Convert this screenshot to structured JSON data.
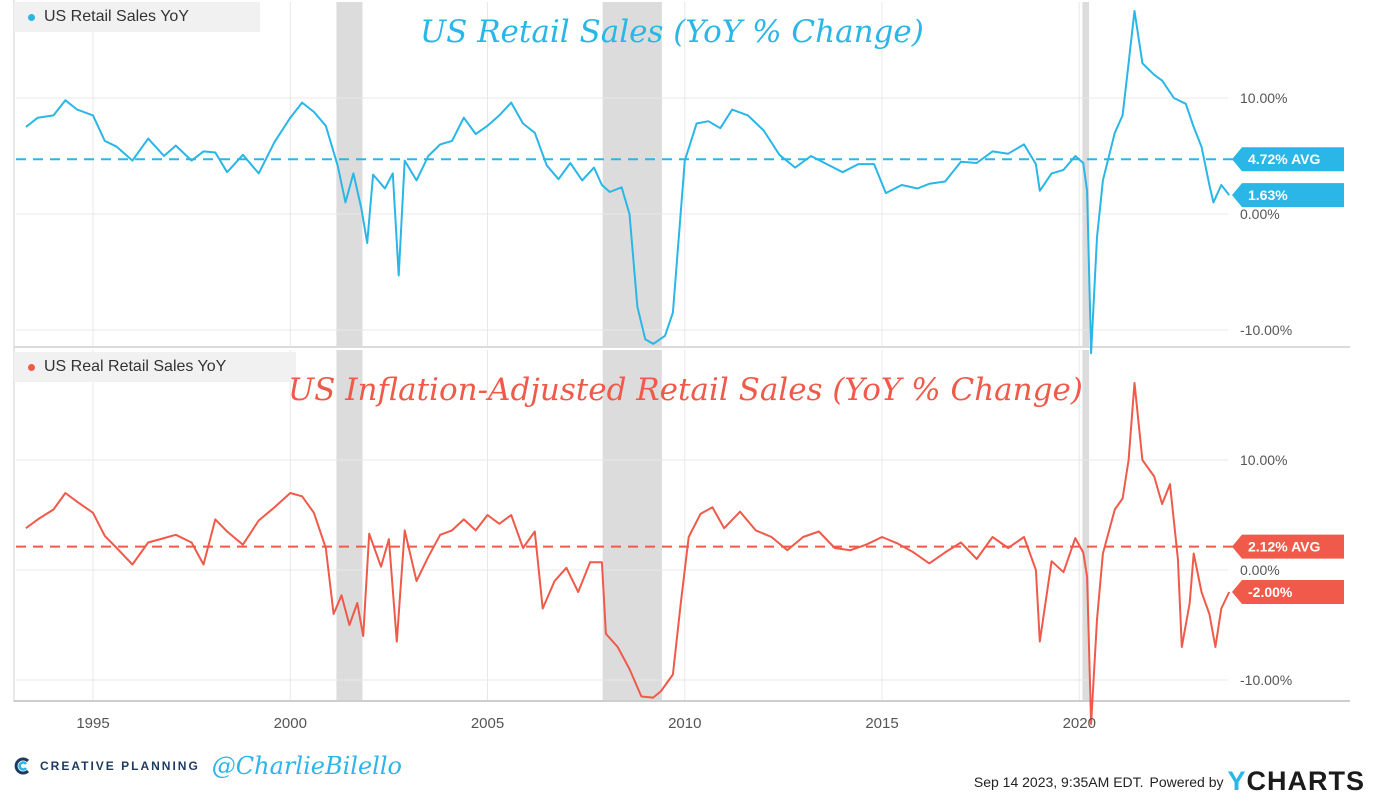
{
  "chart_data": [
    {
      "type": "line",
      "id": "nominal",
      "legend_label": "US Retail Sales YoY",
      "overlay_title": "US Retail Sales (YoY % Change)",
      "color": "#2ab6e6",
      "x_range": [
        1993.3,
        2023.8
      ],
      "ylim": [
        -12,
        20
      ],
      "x_ticks": [
        "1995",
        "2000",
        "2005",
        "2010",
        "2015",
        "2020"
      ],
      "y_ticks": [
        "10.00%",
        "0.00%",
        "-10.00%"
      ],
      "y_tick_values": [
        10,
        0,
        -10
      ],
      "average": 4.72,
      "average_label": "4.72% AVG",
      "last_value": 1.63,
      "last_value_label": "1.63%",
      "recessions": [
        [
          2001.17,
          2001.83
        ],
        [
          2007.92,
          2009.42
        ],
        [
          2020.08,
          2020.25
        ]
      ],
      "series": [
        {
          "name": "US Retail Sales YoY",
          "points": [
            [
              1993.3,
              7.5
            ],
            [
              1993.6,
              8.3
            ],
            [
              1994.0,
              8.5
            ],
            [
              1994.3,
              9.8
            ],
            [
              1994.6,
              9.0
            ],
            [
              1995.0,
              8.5
            ],
            [
              1995.3,
              6.3
            ],
            [
              1995.6,
              5.8
            ],
            [
              1996.0,
              4.6
            ],
            [
              1996.4,
              6.5
            ],
            [
              1996.8,
              5.0
            ],
            [
              1997.1,
              5.9
            ],
            [
              1997.5,
              4.6
            ],
            [
              1997.8,
              5.4
            ],
            [
              1998.1,
              5.3
            ],
            [
              1998.4,
              3.6
            ],
            [
              1998.8,
              5.1
            ],
            [
              1999.2,
              3.5
            ],
            [
              1999.6,
              6.2
            ],
            [
              2000.0,
              8.3
            ],
            [
              2000.3,
              9.6
            ],
            [
              2000.6,
              8.8
            ],
            [
              2000.9,
              7.6
            ],
            [
              2001.2,
              4.2
            ],
            [
              2001.4,
              1.0
            ],
            [
              2001.6,
              3.5
            ],
            [
              2001.8,
              0.5
            ],
            [
              2001.95,
              -2.5
            ],
            [
              2002.1,
              3.4
            ],
            [
              2002.4,
              2.2
            ],
            [
              2002.6,
              3.5
            ],
            [
              2002.75,
              -5.3
            ],
            [
              2002.9,
              4.6
            ],
            [
              2003.2,
              2.9
            ],
            [
              2003.5,
              5.0
            ],
            [
              2003.8,
              6.0
            ],
            [
              2004.1,
              6.3
            ],
            [
              2004.4,
              8.3
            ],
            [
              2004.7,
              6.9
            ],
            [
              2005.0,
              7.6
            ],
            [
              2005.3,
              8.5
            ],
            [
              2005.6,
              9.6
            ],
            [
              2005.9,
              7.8
            ],
            [
              2006.2,
              7.0
            ],
            [
              2006.5,
              4.2
            ],
            [
              2006.8,
              3.0
            ],
            [
              2007.1,
              4.4
            ],
            [
              2007.4,
              2.9
            ],
            [
              2007.7,
              4.0
            ],
            [
              2007.9,
              2.5
            ],
            [
              2008.1,
              1.9
            ],
            [
              2008.4,
              2.3
            ],
            [
              2008.6,
              0.0
            ],
            [
              2008.8,
              -8.0
            ],
            [
              2009.0,
              -10.8
            ],
            [
              2009.2,
              -11.2
            ],
            [
              2009.5,
              -10.5
            ],
            [
              2009.7,
              -8.5
            ],
            [
              2009.85,
              -2.0
            ],
            [
              2010.0,
              4.6
            ],
            [
              2010.3,
              7.8
            ],
            [
              2010.6,
              8.0
            ],
            [
              2010.9,
              7.4
            ],
            [
              2011.2,
              9.0
            ],
            [
              2011.6,
              8.5
            ],
            [
              2012.0,
              7.2
            ],
            [
              2012.4,
              5.1
            ],
            [
              2012.8,
              4.0
            ],
            [
              2013.2,
              5.0
            ],
            [
              2013.6,
              4.3
            ],
            [
              2014.0,
              3.6
            ],
            [
              2014.4,
              4.3
            ],
            [
              2014.8,
              4.3
            ],
            [
              2015.1,
              1.8
            ],
            [
              2015.5,
              2.5
            ],
            [
              2015.9,
              2.2
            ],
            [
              2016.2,
              2.6
            ],
            [
              2016.6,
              2.8
            ],
            [
              2017.0,
              4.5
            ],
            [
              2017.4,
              4.4
            ],
            [
              2017.8,
              5.4
            ],
            [
              2018.2,
              5.2
            ],
            [
              2018.6,
              6.0
            ],
            [
              2018.9,
              4.3
            ],
            [
              2019.0,
              2.0
            ],
            [
              2019.3,
              3.5
            ],
            [
              2019.6,
              3.8
            ],
            [
              2019.9,
              5.0
            ],
            [
              2020.1,
              4.4
            ],
            [
              2020.2,
              2.0
            ],
            [
              2020.3,
              -12.0
            ],
            [
              2020.45,
              -2.0
            ],
            [
              2020.6,
              2.9
            ],
            [
              2020.9,
              7.0
            ],
            [
              2021.1,
              8.5
            ],
            [
              2021.25,
              13.0
            ],
            [
              2021.4,
              17.5
            ],
            [
              2021.6,
              13.0
            ],
            [
              2021.9,
              12.0
            ],
            [
              2022.1,
              11.5
            ],
            [
              2022.4,
              10.0
            ],
            [
              2022.7,
              9.5
            ],
            [
              2022.9,
              7.5
            ],
            [
              2023.1,
              5.8
            ],
            [
              2023.3,
              2.5
            ],
            [
              2023.4,
              1.0
            ],
            [
              2023.6,
              2.5
            ],
            [
              2023.8,
              1.63
            ]
          ]
        }
      ]
    },
    {
      "type": "line",
      "id": "real",
      "legend_label": "US Real Retail Sales YoY",
      "overlay_title": "US Inflation-Adjusted Retail Sales (YoY % Change)",
      "color": "#ef5a4a",
      "x_range": [
        1993.3,
        2023.8
      ],
      "ylim": [
        -12,
        20
      ],
      "x_ticks": [
        "1995",
        "2000",
        "2005",
        "2010",
        "2015",
        "2020"
      ],
      "y_ticks": [
        "10.00%",
        "0.00%",
        "-10.00%"
      ],
      "y_tick_values": [
        10,
        0,
        -10
      ],
      "average": 2.12,
      "average_label": "2.12% AVG",
      "last_value": -2.0,
      "last_value_label": "-2.00%",
      "recessions": [
        [
          2001.17,
          2001.83
        ],
        [
          2007.92,
          2009.42
        ],
        [
          2020.08,
          2020.25
        ]
      ],
      "series": [
        {
          "name": "US Real Retail Sales YoY",
          "points": [
            [
              1993.3,
              3.8
            ],
            [
              1993.6,
              4.6
            ],
            [
              1994.0,
              5.5
            ],
            [
              1994.3,
              7.0
            ],
            [
              1994.6,
              6.2
            ],
            [
              1995.0,
              5.2
            ],
            [
              1995.3,
              3.1
            ],
            [
              1995.6,
              2.0
            ],
            [
              1996.0,
              0.5
            ],
            [
              1996.4,
              2.5
            ],
            [
              1996.8,
              2.9
            ],
            [
              1997.1,
              3.2
            ],
            [
              1997.5,
              2.5
            ],
            [
              1997.8,
              0.5
            ],
            [
              1998.1,
              4.6
            ],
            [
              1998.4,
              3.5
            ],
            [
              1998.8,
              2.3
            ],
            [
              1999.2,
              4.5
            ],
            [
              1999.6,
              5.7
            ],
            [
              2000.0,
              7.0
            ],
            [
              2000.3,
              6.7
            ],
            [
              2000.6,
              5.2
            ],
            [
              2000.9,
              2.0
            ],
            [
              2001.1,
              -4.0
            ],
            [
              2001.3,
              -2.3
            ],
            [
              2001.5,
              -5.0
            ],
            [
              2001.7,
              -3.0
            ],
            [
              2001.85,
              -6.0
            ],
            [
              2002.0,
              3.3
            ],
            [
              2002.3,
              0.3
            ],
            [
              2002.5,
              2.8
            ],
            [
              2002.7,
              -6.5
            ],
            [
              2002.9,
              3.6
            ],
            [
              2003.2,
              -1.0
            ],
            [
              2003.5,
              1.2
            ],
            [
              2003.8,
              3.2
            ],
            [
              2004.1,
              3.6
            ],
            [
              2004.4,
              4.6
            ],
            [
              2004.7,
              3.6
            ],
            [
              2005.0,
              5.0
            ],
            [
              2005.3,
              4.2
            ],
            [
              2005.6,
              5.0
            ],
            [
              2005.9,
              2.0
            ],
            [
              2006.2,
              3.5
            ],
            [
              2006.4,
              -3.5
            ],
            [
              2006.7,
              -1.0
            ],
            [
              2007.0,
              0.2
            ],
            [
              2007.3,
              -2.0
            ],
            [
              2007.6,
              0.7
            ],
            [
              2007.9,
              0.7
            ],
            [
              2008.0,
              -5.8
            ],
            [
              2008.3,
              -7.0
            ],
            [
              2008.6,
              -9.0
            ],
            [
              2008.9,
              -11.5
            ],
            [
              2009.2,
              -11.6
            ],
            [
              2009.4,
              -11.0
            ],
            [
              2009.7,
              -9.5
            ],
            [
              2009.9,
              -3.0
            ],
            [
              2010.1,
              3.0
            ],
            [
              2010.4,
              5.1
            ],
            [
              2010.7,
              5.7
            ],
            [
              2011.0,
              3.8
            ],
            [
              2011.4,
              5.3
            ],
            [
              2011.8,
              3.6
            ],
            [
              2012.2,
              3.0
            ],
            [
              2012.6,
              1.8
            ],
            [
              2013.0,
              3.0
            ],
            [
              2013.4,
              3.5
            ],
            [
              2013.8,
              2.0
            ],
            [
              2014.2,
              1.8
            ],
            [
              2014.6,
              2.3
            ],
            [
              2015.0,
              3.0
            ],
            [
              2015.4,
              2.4
            ],
            [
              2015.8,
              1.6
            ],
            [
              2016.2,
              0.6
            ],
            [
              2016.6,
              1.6
            ],
            [
              2017.0,
              2.5
            ],
            [
              2017.4,
              1.0
            ],
            [
              2017.8,
              3.0
            ],
            [
              2018.2,
              2.0
            ],
            [
              2018.6,
              3.0
            ],
            [
              2018.9,
              0.0
            ],
            [
              2019.0,
              -6.5
            ],
            [
              2019.3,
              0.8
            ],
            [
              2019.6,
              -0.2
            ],
            [
              2019.9,
              2.9
            ],
            [
              2020.1,
              1.6
            ],
            [
              2020.2,
              -0.6
            ],
            [
              2020.3,
              -14.0
            ],
            [
              2020.45,
              -4.5
            ],
            [
              2020.6,
              1.5
            ],
            [
              2020.9,
              5.5
            ],
            [
              2021.1,
              6.5
            ],
            [
              2021.25,
              10.0
            ],
            [
              2021.4,
              17.0
            ],
            [
              2021.6,
              10.0
            ],
            [
              2021.9,
              8.5
            ],
            [
              2022.1,
              6.0
            ],
            [
              2022.3,
              7.8
            ],
            [
              2022.5,
              1.0
            ],
            [
              2022.6,
              -7.0
            ],
            [
              2022.8,
              -3.0
            ],
            [
              2022.9,
              1.5
            ],
            [
              2023.1,
              -2.0
            ],
            [
              2023.3,
              -4.0
            ],
            [
              2023.45,
              -7.0
            ],
            [
              2023.6,
              -3.5
            ],
            [
              2023.8,
              -2.0
            ]
          ]
        }
      ]
    }
  ],
  "footer": {
    "brand": "CREATIVE PLANNING",
    "handle": "@CharlieBilello",
    "date": "Sep 14 2023, 9:35AM EDT.",
    "powered_by": "Powered by",
    "ycharts_y": "Y",
    "ycharts_rest": "CHARTS"
  },
  "colors": {
    "grid": "#e8e8e8",
    "recession": "#dcdcdc",
    "axis_text": "#555555",
    "brand_dark": "#1e3a5f"
  }
}
